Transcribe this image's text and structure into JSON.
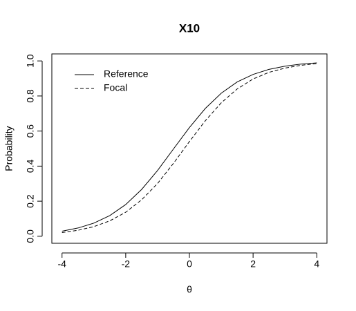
{
  "chart_data": {
    "type": "line",
    "title": "X10",
    "x_label": "θ",
    "y_label": "Probability",
    "x": [
      -4,
      -3.5,
      -3,
      -2.5,
      -2,
      -1.5,
      -1,
      -0.5,
      0,
      0.5,
      1,
      1.5,
      2,
      2.5,
      3,
      3.5,
      4
    ],
    "series": [
      {
        "name": "Reference",
        "color": "#000000",
        "linestyle": "solid",
        "values": [
          0.029,
          0.047,
          0.075,
          0.118,
          0.181,
          0.267,
          0.375,
          0.498,
          0.62,
          0.729,
          0.816,
          0.88,
          0.923,
          0.952,
          0.97,
          0.982,
          0.989
        ]
      },
      {
        "name": "Focal",
        "color": "#000000",
        "linestyle": "dashed",
        "values": [
          0.021,
          0.034,
          0.055,
          0.088,
          0.137,
          0.208,
          0.301,
          0.416,
          0.54,
          0.659,
          0.761,
          0.84,
          0.897,
          0.935,
          0.959,
          0.975,
          0.985
        ]
      }
    ],
    "xlim": [
      -4.32,
      4.32
    ],
    "xticks": [
      -4,
      -2,
      0,
      2,
      4
    ],
    "ylim": [
      -0.04,
      1.04
    ],
    "yticks": [
      {
        "value": 0,
        "label": "0.0"
      },
      {
        "value": 0.2,
        "label": "0.2"
      },
      0.4,
      0.6,
      0.8,
      {
        "value": 1,
        "label": "1.0"
      }
    ],
    "grid": false,
    "legend_position": "top-left"
  }
}
